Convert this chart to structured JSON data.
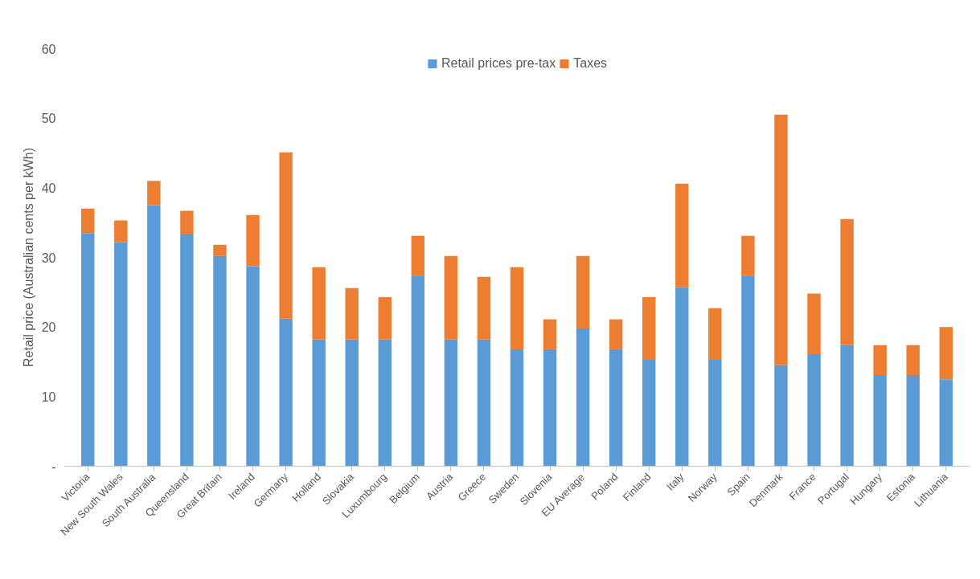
{
  "chart_data": {
    "type": "bar",
    "stacked": true,
    "ylabel": "Retail price (Australian cents per kWh)",
    "categories": [
      "Victoria",
      "New South Wales",
      "South Australia",
      "Queensland",
      "Great Britain",
      "Ireland",
      "Germany",
      "Holland",
      "Slovakia",
      "Luxumbourg",
      "Belgium",
      "Austria",
      "Greece",
      "Sweden",
      "Slovenia",
      "EU Average",
      "Poland",
      "Finland",
      "Italy",
      "Norway",
      "Spain",
      "Denmark",
      "France",
      "Portugal",
      "Hungary",
      "Estonia",
      "Lithuania"
    ],
    "series": [
      {
        "name": "Retail prices pre-tax",
        "color": "#5b9bd5",
        "values": [
          33.5,
          32.2,
          37.5,
          33.3,
          30.2,
          28.7,
          21.2,
          18.2,
          18.2,
          18.2,
          27.3,
          18.2,
          18.2,
          16.8,
          16.8,
          19.8,
          16.8,
          15.3,
          25.7,
          15.3,
          27.3,
          14.5,
          16.1,
          17.4,
          13.1,
          13.1,
          12.5
        ]
      },
      {
        "name": "Taxes",
        "color": "#ed7d31",
        "values": [
          3.5,
          3.1,
          3.5,
          3.4,
          1.6,
          7.4,
          23.9,
          10.4,
          7.4,
          6.1,
          5.8,
          12.0,
          9.0,
          11.8,
          4.3,
          10.4,
          4.3,
          9.0,
          14.9,
          7.4,
          5.8,
          36.0,
          8.7,
          18.1,
          4.3,
          4.3,
          7.5
        ]
      }
    ],
    "ylim": [
      0,
      60
    ],
    "yticks": [
      {
        "value": 0,
        "label": "-"
      },
      10,
      20,
      30,
      40,
      50,
      60
    ],
    "grid": false,
    "legend": "top"
  }
}
